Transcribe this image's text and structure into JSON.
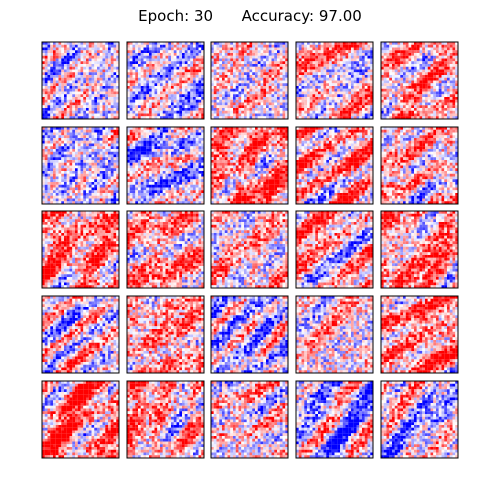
{
  "title": {
    "epoch_label": "Epoch:",
    "epoch": 30,
    "accuracy_label": "Accuracy:",
    "accuracy": "97.00"
  },
  "chart_data": {
    "type": "heatmap",
    "title": "Epoch: 30      Accuracy: 97.00",
    "rows": 5,
    "cols": 5,
    "cell_resolution": 28,
    "colormap": "seismic",
    "colors": {
      "negative": "#0000ff",
      "zero": "#ffffff",
      "positive": "#ff0000",
      "frame": "#000000"
    },
    "axis_ticks": "none",
    "panels": [
      {
        "row": 0,
        "col": 0,
        "bias": -0.05
      },
      {
        "row": 0,
        "col": 1,
        "bias": -0.15
      },
      {
        "row": 0,
        "col": 2,
        "bias": 0.1
      },
      {
        "row": 0,
        "col": 3,
        "bias": 0.15
      },
      {
        "row": 0,
        "col": 4,
        "bias": 0.3
      },
      {
        "row": 1,
        "col": 0,
        "bias": -0.15
      },
      {
        "row": 1,
        "col": 1,
        "bias": -0.2
      },
      {
        "row": 1,
        "col": 2,
        "bias": 0.45
      },
      {
        "row": 1,
        "col": 3,
        "bias": 0.35
      },
      {
        "row": 1,
        "col": 4,
        "bias": 0.2
      },
      {
        "row": 2,
        "col": 0,
        "bias": 0.5
      },
      {
        "row": 2,
        "col": 1,
        "bias": 0.35
      },
      {
        "row": 2,
        "col": 2,
        "bias": 0.2
      },
      {
        "row": 2,
        "col": 3,
        "bias": 0.3
      },
      {
        "row": 2,
        "col": 4,
        "bias": 0.4
      },
      {
        "row": 3,
        "col": 0,
        "bias": 0.05
      },
      {
        "row": 3,
        "col": 1,
        "bias": 0.35
      },
      {
        "row": 3,
        "col": 2,
        "bias": -0.2
      },
      {
        "row": 3,
        "col": 3,
        "bias": 0.1
      },
      {
        "row": 3,
        "col": 4,
        "bias": 0.45
      },
      {
        "row": 4,
        "col": 0,
        "bias": 0.5
      },
      {
        "row": 4,
        "col": 1,
        "bias": 0.3
      },
      {
        "row": 4,
        "col": 2,
        "bias": 0.1
      },
      {
        "row": 4,
        "col": 3,
        "bias": -0.2
      },
      {
        "row": 4,
        "col": 4,
        "bias": -0.05
      }
    ]
  }
}
